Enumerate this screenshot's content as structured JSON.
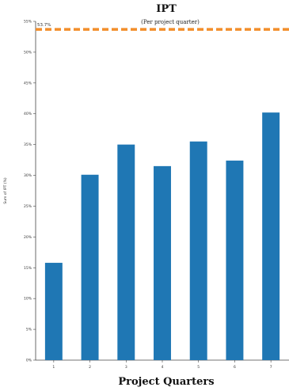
{
  "chart_data": {
    "type": "bar",
    "title": "IPT",
    "subtitle": "(Per project quarter)",
    "xlabel": "Project Quarters",
    "ylabel": "Sum of IPT (%)",
    "categories": [
      "1",
      "2",
      "3",
      "4",
      "5",
      "6",
      "7"
    ],
    "values": [
      15.8,
      30.1,
      35.0,
      31.5,
      35.5,
      32.4,
      40.2
    ],
    "ylim": [
      0,
      55
    ],
    "yticks": [
      0,
      5,
      10,
      15,
      20,
      25,
      30,
      35,
      40,
      45,
      50,
      55
    ],
    "ytick_labels": [
      "0%",
      "5%",
      "10%",
      "15%",
      "20%",
      "25%",
      "30%",
      "35%",
      "40%",
      "45%",
      "50%",
      "55%"
    ],
    "reference_line": {
      "value": 53.7,
      "label": "53.7%",
      "color": "#f28e2b",
      "style": "dashed"
    },
    "bar_color": "#1f77b4",
    "grid": false,
    "legend": "none"
  }
}
